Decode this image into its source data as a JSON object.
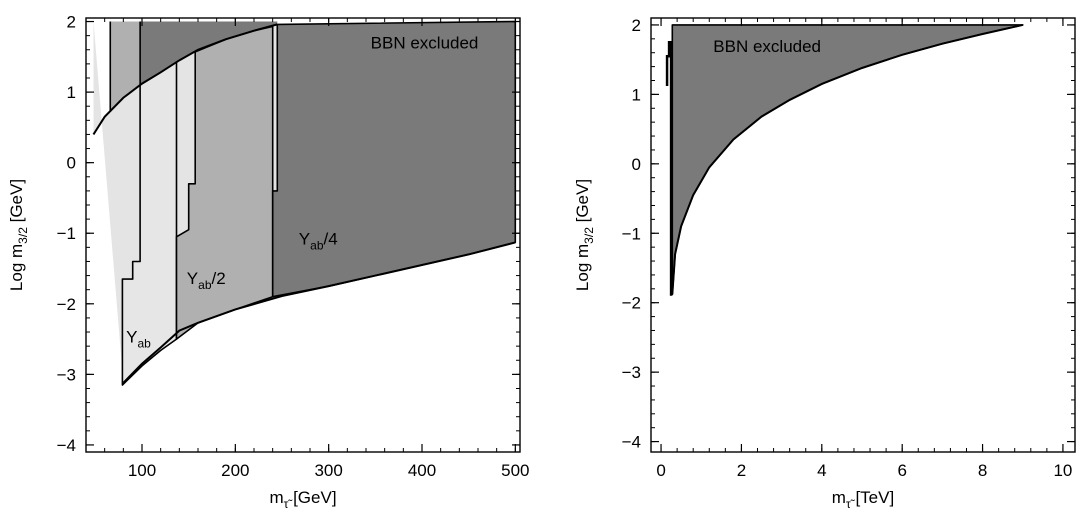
{
  "chart_data": [
    {
      "type": "area",
      "xlabel": {
        "base": "m",
        "sub": "τ̃",
        "unit": "[GeV]"
      },
      "ylabel": {
        "base": "Log m",
        "sub": "3/2",
        "unit": "[GeV]"
      },
      "xlim": [
        40,
        505
      ],
      "ylim": [
        -4.1,
        2.05
      ],
      "xticks": [
        100,
        200,
        300,
        400,
        500
      ],
      "yticks": [
        -4,
        -3,
        -2,
        -1,
        0,
        1,
        2
      ],
      "xtick_labels": [
        "100",
        "200",
        "300",
        "400",
        "500"
      ],
      "ytick_labels": [
        "−4",
        "−3",
        "−2",
        "−1",
        "0",
        "1",
        "2"
      ],
      "grid": false,
      "regions": [
        {
          "name": "outer",
          "color": "#e4e4e4",
          "points": [
            [
              48,
              0.4
            ],
            [
              60,
              0.65
            ],
            [
              80,
              0.92
            ],
            [
              100,
              1.12
            ],
            [
              120,
              1.28
            ],
            [
              140,
              1.45
            ],
            [
              160,
              1.6
            ],
            [
              190,
              1.75
            ],
            [
              220,
              1.87
            ],
            [
              245,
              1.96
            ],
            [
              500,
              -1.13
            ],
            [
              450,
              -1.3
            ],
            [
              400,
              -1.45
            ],
            [
              350,
              -1.6
            ],
            [
              300,
              -1.75
            ],
            [
              250,
              -1.89
            ],
            [
              200,
              -2.08
            ],
            [
              160,
              -2.27
            ],
            [
              140,
              -2.38
            ],
            [
              120,
              -2.62
            ],
            [
              100,
              -2.85
            ],
            [
              80,
              -3.12
            ],
            [
              48,
              2.0
            ]
          ]
        },
        {
          "name": "Y_ab",
          "label": {
            "base": "Y",
            "sub": "ab",
            "suffix": "",
            "x": 83,
            "y": -2.55
          },
          "color": "#e6e6e6",
          "points": [
            [
              79,
              -1.65
            ],
            [
              90,
              -1.65
            ],
            [
              90,
              -1.4
            ],
            [
              98,
              -1.4
            ],
            [
              98,
              1.1
            ],
            [
              120,
              1.28
            ],
            [
              137,
              1.43
            ],
            [
              137,
              -2.5
            ],
            [
              120,
              -2.66
            ],
            [
              100,
              -2.88
            ],
            [
              79,
              -3.15
            ]
          ]
        },
        {
          "name": "Y_ab/2",
          "label": {
            "base": "Y",
            "sub": "ab",
            "suffix": "/2",
            "x": 148,
            "y": -1.72
          },
          "color": "#b0b0b0",
          "points": [
            [
              137,
              -1.05
            ],
            [
              150,
              -0.95
            ],
            [
              150,
              -0.3
            ],
            [
              157,
              -0.3
            ],
            [
              157,
              1.57
            ],
            [
              190,
              1.75
            ],
            [
              220,
              1.87
            ],
            [
              240,
              1.93
            ],
            [
              240,
              -1.9
            ],
            [
              200,
              -2.08
            ],
            [
              160,
              -2.27
            ],
            [
              137,
              -2.5
            ]
          ]
        },
        {
          "name": "Y_ab/4",
          "label": {
            "base": "Y",
            "sub": "ab",
            "suffix": "/4",
            "x": 268,
            "y": -1.16
          },
          "color": "#7a7a7a",
          "points": [
            [
              240,
              -0.4
            ],
            [
              245,
              -0.4
            ],
            [
              245,
              1.96
            ],
            [
              500,
              2.0
            ],
            [
              500,
              -1.13
            ],
            [
              450,
              -1.3
            ],
            [
              400,
              -1.45
            ],
            [
              350,
              -1.6
            ],
            [
              300,
              -1.75
            ],
            [
              240,
              -1.9
            ]
          ]
        },
        {
          "name": "top-strip",
          "color": "#b0b0b0",
          "points": [
            [
              66,
              2.0
            ],
            [
              98,
              2.0
            ],
            [
              98,
              1.1
            ],
            [
              80,
              0.92
            ],
            [
              66,
              0.72
            ]
          ]
        },
        {
          "name": "top-dark",
          "color": "#7a7a7a",
          "points": [
            [
              98,
              2.0
            ],
            [
              245,
              2.0
            ],
            [
              245,
              1.96
            ],
            [
              220,
              1.87
            ],
            [
              190,
              1.75
            ],
            [
              160,
              1.6
            ],
            [
              140,
              1.45
            ],
            [
              120,
              1.28
            ],
            [
              98,
              1.1
            ]
          ]
        }
      ],
      "annotation": {
        "text": "BBN excluded",
        "x": 345,
        "y": 1.7
      }
    },
    {
      "type": "area",
      "xlabel": {
        "base": "m",
        "sub": "τ̃",
        "unit": "[TeV]"
      },
      "ylabel": {
        "base": "Log m",
        "sub": "3/2",
        "unit": "[GeV]"
      },
      "xlim": [
        -0.25,
        10.3
      ],
      "ylim": [
        -4.15,
        2.1
      ],
      "xticks": [
        0,
        2,
        4,
        6,
        8,
        10
      ],
      "yticks": [
        -4,
        -3,
        -2,
        -1,
        0,
        1,
        2
      ],
      "xtick_labels": [
        "0",
        "2",
        "4",
        "6",
        "8",
        "10"
      ],
      "ytick_labels": [
        "−4",
        "−3",
        "−2",
        "−1",
        "0",
        "1",
        "2"
      ],
      "grid": false,
      "regions": [
        {
          "name": "excluded",
          "color": "#7a7a7a",
          "points": [
            [
              0.28,
              -1.88
            ],
            [
              0.35,
              -1.3
            ],
            [
              0.5,
              -0.9
            ],
            [
              0.8,
              -0.45
            ],
            [
              1.2,
              -0.05
            ],
            [
              1.8,
              0.35
            ],
            [
              2.5,
              0.68
            ],
            [
              3.2,
              0.92
            ],
            [
              4.0,
              1.15
            ],
            [
              5.0,
              1.38
            ],
            [
              6.0,
              1.57
            ],
            [
              7.0,
              1.73
            ],
            [
              8.0,
              1.87
            ],
            [
              9.0,
              2.0
            ],
            [
              0.28,
              2.0
            ]
          ]
        }
      ],
      "spike": [
        [
          0.15,
          1.12
        ],
        [
          0.15,
          1.55
        ],
        [
          0.2,
          1.55
        ],
        [
          0.2,
          1.75
        ],
        [
          0.25,
          1.75
        ],
        [
          0.25,
          -1.9
        ]
      ],
      "annotation": {
        "text": "BBN excluded",
        "x": 1.3,
        "y": 1.7
      }
    }
  ]
}
